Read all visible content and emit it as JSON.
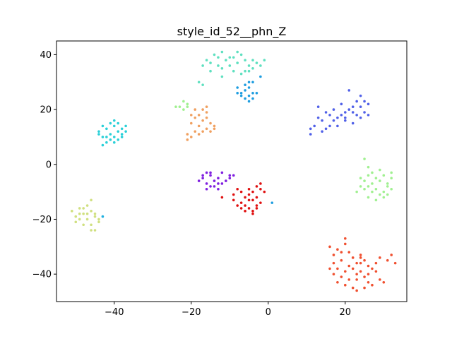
{
  "chart_data": {
    "type": "scatter",
    "title": "style_id_52__phn_Z",
    "xlabel": "",
    "ylabel": "",
    "xlim": [
      -55,
      36
    ],
    "ylim": [
      -50,
      45
    ],
    "xticks": [
      -40,
      -20,
      0,
      20
    ],
    "yticks": [
      -40,
      -20,
      0,
      20,
      40
    ],
    "xtick_labels": [
      "−40",
      "−20",
      "0",
      "20"
    ],
    "ytick_labels": [
      "−40",
      "−20",
      "0",
      "20",
      "40"
    ],
    "grid": false,
    "legend": "none",
    "series": [
      {
        "color": "#5fe0c0",
        "points": [
          [
            -17,
            36
          ],
          [
            -16,
            38
          ],
          [
            -15,
            37
          ],
          [
            -14,
            40
          ],
          [
            -13,
            39
          ],
          [
            -12,
            41
          ],
          [
            -11,
            38
          ],
          [
            -10,
            36
          ],
          [
            -9,
            39
          ],
          [
            -8,
            37
          ],
          [
            -7,
            40
          ],
          [
            -6,
            38
          ],
          [
            -5,
            36
          ],
          [
            -4,
            35
          ],
          [
            -3,
            37
          ],
          [
            -2,
            36
          ],
          [
            -12,
            35
          ],
          [
            -9,
            34
          ],
          [
            -6,
            34
          ],
          [
            -13,
            36
          ],
          [
            -8,
            41
          ],
          [
            -15,
            34
          ],
          [
            -10,
            39
          ],
          [
            -4,
            38
          ],
          [
            -18,
            30
          ],
          [
            -17,
            29
          ],
          [
            -12,
            32
          ],
          [
            -7,
            33
          ],
          [
            -5,
            34
          ],
          [
            -1,
            38
          ]
        ]
      },
      {
        "color": "#1e9de0",
        "points": [
          [
            -8,
            28
          ],
          [
            -7,
            26
          ],
          [
            -6,
            27
          ],
          [
            -5,
            25
          ],
          [
            -4,
            26
          ],
          [
            -6,
            24
          ],
          [
            -5,
            28
          ],
          [
            -4,
            24
          ],
          [
            -7,
            25
          ],
          [
            -3,
            26
          ],
          [
            -5,
            30
          ],
          [
            -4,
            30
          ],
          [
            -2,
            32
          ],
          [
            -8,
            26
          ],
          [
            -6,
            29
          ],
          [
            -5,
            23
          ]
        ]
      },
      {
        "color": "#a0f090",
        "points": [
          [
            -23,
            21
          ],
          [
            -22,
            20
          ],
          [
            -21,
            22
          ],
          [
            -22,
            23
          ],
          [
            -24,
            21
          ],
          [
            -21,
            21
          ]
        ]
      },
      {
        "color": "#f0a060",
        "points": [
          [
            -19,
            20
          ],
          [
            -18,
            18
          ],
          [
            -17,
            16
          ],
          [
            -16,
            19
          ],
          [
            -20,
            15
          ],
          [
            -18,
            14
          ],
          [
            -17,
            12
          ],
          [
            -16,
            13
          ],
          [
            -15,
            15
          ],
          [
            -14,
            14
          ],
          [
            -19,
            12
          ],
          [
            -20,
            10
          ],
          [
            -21,
            9
          ],
          [
            -18,
            11
          ],
          [
            -15,
            12
          ],
          [
            -14,
            13
          ],
          [
            -17,
            20
          ],
          [
            -16,
            21
          ],
          [
            -19,
            17
          ],
          [
            -20,
            18
          ],
          [
            -21,
            11
          ],
          [
            -16,
            17
          ]
        ]
      },
      {
        "color": "#2ad0d8",
        "points": [
          [
            -44,
            12
          ],
          [
            -43,
            14
          ],
          [
            -42,
            13
          ],
          [
            -41,
            15
          ],
          [
            -40,
            14
          ],
          [
            -39,
            12
          ],
          [
            -38,
            13
          ],
          [
            -37,
            12
          ],
          [
            -41,
            11
          ],
          [
            -40,
            10
          ],
          [
            -42,
            10
          ],
          [
            -39,
            9
          ],
          [
            -40,
            16
          ],
          [
            -43,
            10
          ],
          [
            -38,
            11
          ],
          [
            -41,
            9
          ],
          [
            -39,
            15
          ],
          [
            -42,
            8
          ],
          [
            -40,
            8
          ],
          [
            -44,
            11
          ],
          [
            -37,
            14
          ],
          [
            -38,
            10
          ],
          [
            -43,
            7
          ]
        ]
      },
      {
        "color": "#5060e8",
        "points": [
          [
            11,
            13
          ],
          [
            12,
            14
          ],
          [
            13,
            17
          ],
          [
            14,
            16
          ],
          [
            15,
            19
          ],
          [
            16,
            18
          ],
          [
            17,
            20
          ],
          [
            18,
            17
          ],
          [
            19,
            18
          ],
          [
            20,
            19
          ],
          [
            21,
            20
          ],
          [
            22,
            19
          ],
          [
            23,
            18
          ],
          [
            24,
            21
          ],
          [
            25,
            23
          ],
          [
            26,
            22
          ],
          [
            14,
            12
          ],
          [
            16,
            14
          ],
          [
            18,
            14
          ],
          [
            20,
            16
          ],
          [
            22,
            15
          ],
          [
            24,
            17
          ],
          [
            25,
            19
          ],
          [
            19,
            22
          ],
          [
            21,
            27
          ],
          [
            17,
            16
          ],
          [
            13,
            21
          ],
          [
            15,
            13
          ],
          [
            11,
            11
          ],
          [
            23,
            23
          ],
          [
            26,
            18
          ],
          [
            22,
            21
          ],
          [
            20,
            17
          ],
          [
            24,
            25
          ]
        ]
      },
      {
        "color": "#a0f090",
        "points": [
          [
            24,
            -5
          ],
          [
            25,
            -6
          ],
          [
            26,
            -4
          ],
          [
            27,
            -7
          ],
          [
            28,
            -5
          ],
          [
            29,
            -6
          ],
          [
            30,
            -4
          ],
          [
            31,
            -7
          ],
          [
            32,
            -5
          ],
          [
            25,
            -9
          ],
          [
            26,
            -8
          ],
          [
            27,
            -10
          ],
          [
            28,
            -9
          ],
          [
            29,
            -11
          ],
          [
            30,
            -10
          ],
          [
            31,
            -8
          ],
          [
            32,
            -9
          ],
          [
            24,
            -8
          ],
          [
            26,
            -12
          ],
          [
            28,
            -13
          ],
          [
            30,
            -12
          ],
          [
            32,
            -3
          ],
          [
            25,
            2
          ],
          [
            29,
            -2
          ],
          [
            27,
            -3
          ],
          [
            23,
            -10
          ],
          [
            31,
            -11
          ],
          [
            26,
            -1
          ]
        ]
      },
      {
        "color": "#8020e0",
        "points": [
          [
            -18,
            -6
          ],
          [
            -17,
            -5
          ],
          [
            -16,
            -7
          ],
          [
            -15,
            -4
          ],
          [
            -14,
            -6
          ],
          [
            -13,
            -5
          ],
          [
            -12,
            -3
          ],
          [
            -11,
            -6
          ],
          [
            -10,
            -4
          ],
          [
            -15,
            -8
          ],
          [
            -16,
            -9
          ],
          [
            -14,
            -8
          ],
          [
            -13,
            -7
          ],
          [
            -17,
            -4
          ],
          [
            -15,
            -3
          ],
          [
            -12,
            -7
          ],
          [
            -10,
            -5
          ],
          [
            -9,
            -4
          ],
          [
            -16,
            -3
          ],
          [
            -13,
            -9
          ]
        ]
      },
      {
        "color": "#e01010",
        "points": [
          [
            -12,
            -12
          ],
          [
            -9,
            -11
          ],
          [
            -8,
            -9
          ],
          [
            -7,
            -10
          ],
          [
            -6,
            -12
          ],
          [
            -5,
            -11
          ],
          [
            -4,
            -10
          ],
          [
            -3,
            -12
          ],
          [
            -2,
            -9
          ],
          [
            -1,
            -10
          ],
          [
            -6,
            -15
          ],
          [
            -5,
            -16
          ],
          [
            -4,
            -17
          ],
          [
            -3,
            -15
          ],
          [
            -7,
            -14
          ],
          [
            -8,
            -15
          ],
          [
            -5,
            -13
          ],
          [
            -3,
            -8
          ],
          [
            -2,
            -7
          ],
          [
            -4,
            -18
          ],
          [
            -7,
            -16
          ],
          [
            -6,
            -17
          ],
          [
            -9,
            -13
          ],
          [
            -2,
            -14
          ],
          [
            -5,
            -9
          ],
          [
            -4,
            -13
          ],
          [
            -3,
            -16
          ]
        ]
      },
      {
        "color": "#1e9de0",
        "points": [
          [
            1,
            -14
          ]
        ]
      },
      {
        "color": "#d0e080",
        "points": [
          [
            -51,
            -17
          ],
          [
            -50,
            -19
          ],
          [
            -49,
            -16
          ],
          [
            -48,
            -18
          ],
          [
            -47,
            -15
          ],
          [
            -46,
            -17
          ],
          [
            -45,
            -19
          ],
          [
            -44,
            -21
          ],
          [
            -50,
            -21
          ],
          [
            -49,
            -20
          ],
          [
            -48,
            -22
          ],
          [
            -47,
            -20
          ],
          [
            -46,
            -22
          ],
          [
            -45,
            -18
          ],
          [
            -46,
            -13
          ],
          [
            -47,
            -18
          ],
          [
            -48,
            -16
          ],
          [
            -46,
            -24
          ],
          [
            -45,
            -24
          ],
          [
            -44,
            -20
          ],
          [
            -49,
            -18
          ]
        ]
      },
      {
        "color": "#20b0e0",
        "points": [
          [
            -43,
            -19
          ]
        ]
      },
      {
        "color": "#f05030",
        "points": [
          [
            16,
            -30
          ],
          [
            17,
            -33
          ],
          [
            18,
            -31
          ],
          [
            19,
            -35
          ],
          [
            20,
            -29
          ],
          [
            21,
            -32
          ],
          [
            22,
            -34
          ],
          [
            23,
            -36
          ],
          [
            24,
            -33
          ],
          [
            25,
            -35
          ],
          [
            26,
            -37
          ],
          [
            27,
            -38
          ],
          [
            28,
            -36
          ],
          [
            29,
            -34
          ],
          [
            16,
            -38
          ],
          [
            17,
            -40
          ],
          [
            18,
            -43
          ],
          [
            19,
            -41
          ],
          [
            20,
            -44
          ],
          [
            21,
            -42
          ],
          [
            22,
            -45
          ],
          [
            23,
            -40
          ],
          [
            24,
            -39
          ],
          [
            25,
            -41
          ],
          [
            26,
            -43
          ],
          [
            27,
            -44
          ],
          [
            28,
            -39
          ],
          [
            29,
            -42
          ],
          [
            30,
            -43
          ],
          [
            31,
            -35
          ],
          [
            32,
            -33
          ],
          [
            33,
            -36
          ],
          [
            20,
            -27
          ],
          [
            23,
            -46
          ],
          [
            25,
            -45
          ],
          [
            18,
            -38
          ],
          [
            21,
            -37
          ],
          [
            24,
            -34
          ],
          [
            19,
            -32
          ],
          [
            22,
            -38
          ],
          [
            26,
            -40
          ],
          [
            23,
            -42
          ],
          [
            17,
            -36
          ],
          [
            20,
            -39
          ],
          [
            24,
            -36
          ]
        ]
      }
    ]
  }
}
